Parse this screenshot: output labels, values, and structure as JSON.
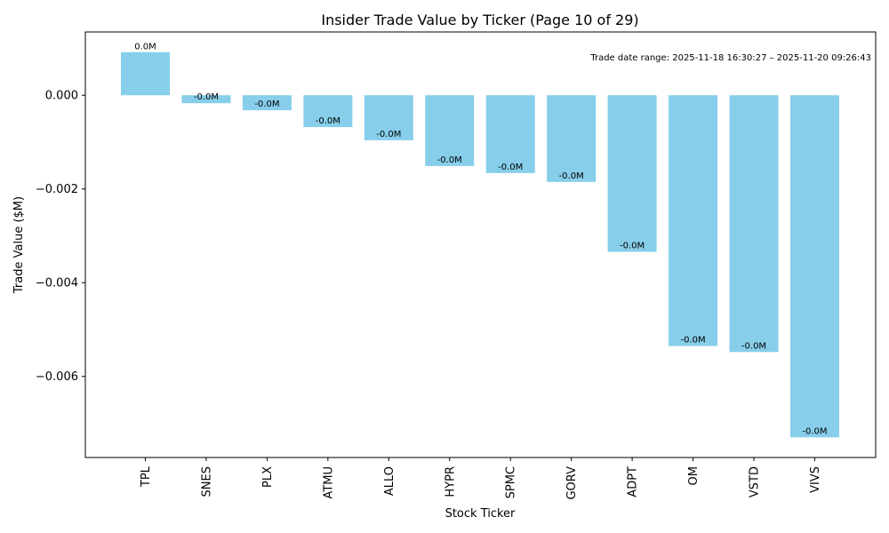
{
  "chart_data": {
    "type": "bar",
    "title": "Insider Trade Value by Ticker (Page 10 of 29)",
    "xlabel": "Stock Ticker",
    "ylabel": "Trade Value ($M)",
    "categories": [
      "TPL",
      "SNES",
      "PLX",
      "ATMU",
      "ALLO",
      "HYPR",
      "SPMC",
      "GORV",
      "ADPT",
      "OM",
      "VSTD",
      "VIVS"
    ],
    "values": [
      0.00092,
      -0.00017,
      -0.00032,
      -0.00068,
      -0.00096,
      -0.00151,
      -0.00166,
      -0.00185,
      -0.00334,
      -0.00535,
      -0.00548,
      -0.0073
    ],
    "data_labels": [
      "0.0M",
      "-0.0M",
      "-0.0M",
      "-0.0M",
      "-0.0M",
      "-0.0M",
      "-0.0M",
      "-0.0M",
      "-0.0M",
      "-0.0M",
      "-0.0M",
      "-0.0M"
    ],
    "ylim": [
      -0.00773,
      0.00135
    ],
    "yticks": [
      0.0,
      -0.002,
      -0.004,
      -0.006
    ],
    "ytick_labels": [
      "0.000",
      "−0.002",
      "−0.004",
      "−0.006"
    ],
    "bar_color": "#87CEEB",
    "grid": false,
    "annotation": "Trade date range: 2025-11-18 16:30:27 – 2025-11-20 09:26:43"
  }
}
